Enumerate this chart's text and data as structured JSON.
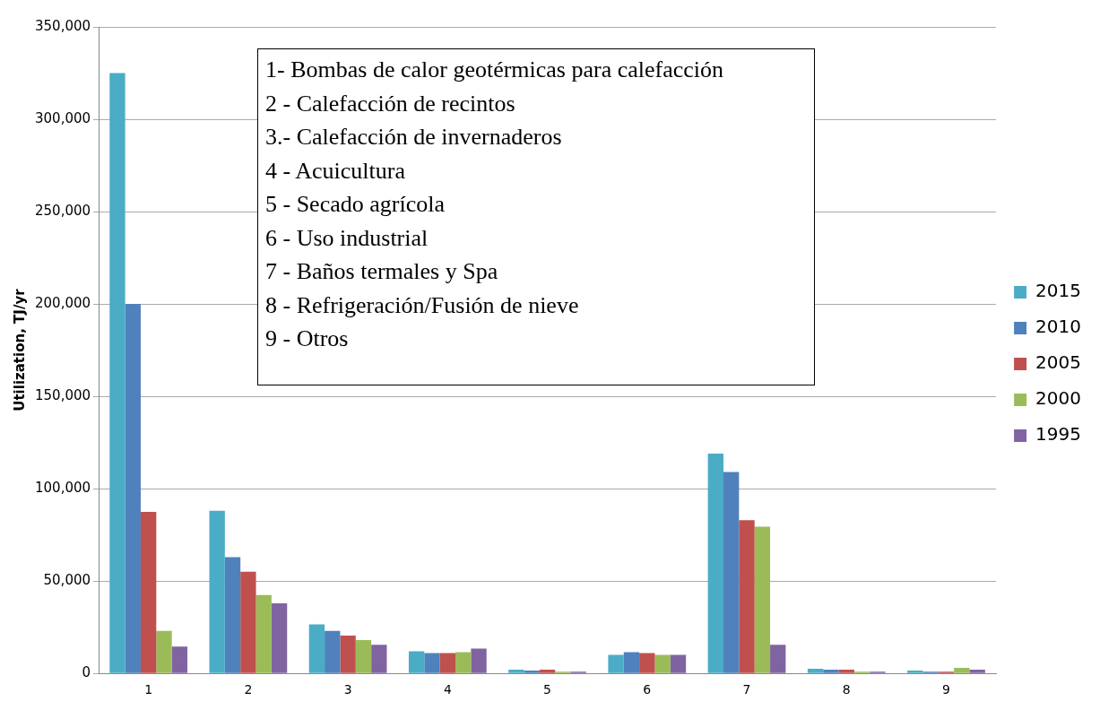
{
  "chart_data": {
    "type": "bar",
    "ylabel": "Utilization, TJ/yr",
    "categories": [
      "1",
      "2",
      "3",
      "4",
      "5",
      "6",
      "7",
      "8",
      "9"
    ],
    "series": [
      {
        "name": "2015",
        "color": "#4bacc6",
        "values": [
          325000,
          88000,
          26500,
          12000,
          2000,
          10000,
          119000,
          2500,
          1500
        ]
      },
      {
        "name": "2010",
        "color": "#4f81bd",
        "values": [
          200000,
          63000,
          23000,
          11000,
          1500,
          11500,
          109000,
          2000,
          1000
        ]
      },
      {
        "name": "2005",
        "color": "#c0504d",
        "values": [
          87500,
          55000,
          20500,
          11000,
          2000,
          11000,
          83000,
          2000,
          1000
        ]
      },
      {
        "name": "2000",
        "color": "#9bbb59",
        "values": [
          23000,
          42500,
          18000,
          11500,
          1000,
          10000,
          79500,
          1000,
          3000
        ]
      },
      {
        "name": "1995",
        "color": "#8064a2",
        "values": [
          14500,
          38000,
          15500,
          13500,
          1000,
          10000,
          15500,
          1000,
          2000
        ]
      }
    ],
    "ylim": [
      0,
      350000
    ],
    "yticks": [
      {
        "value": 0,
        "label": "0"
      },
      {
        "value": 50000,
        "label": "50,000"
      },
      {
        "value": 100000,
        "label": "100,000"
      },
      {
        "value": 150000,
        "label": "150,000"
      },
      {
        "value": 200000,
        "label": "200,000"
      },
      {
        "value": 250000,
        "label": "250,000"
      },
      {
        "value": 300000,
        "label": "300,000"
      },
      {
        "value": 350000,
        "label": "350,000"
      }
    ],
    "grid": "y",
    "legend": "right",
    "annotations": [
      "1- Bombas de calor geotérmicas para calefacción",
      "2 - Calefacción de recintos",
      "3.- Calefacción de invernaderos",
      "4 - Acuicultura",
      "5 - Secado agrícola",
      "6 - Uso industrial",
      "7 - Baños termales y Spa",
      "8 - Refrigeración/Fusión de nieve",
      "9 - Otros"
    ]
  }
}
